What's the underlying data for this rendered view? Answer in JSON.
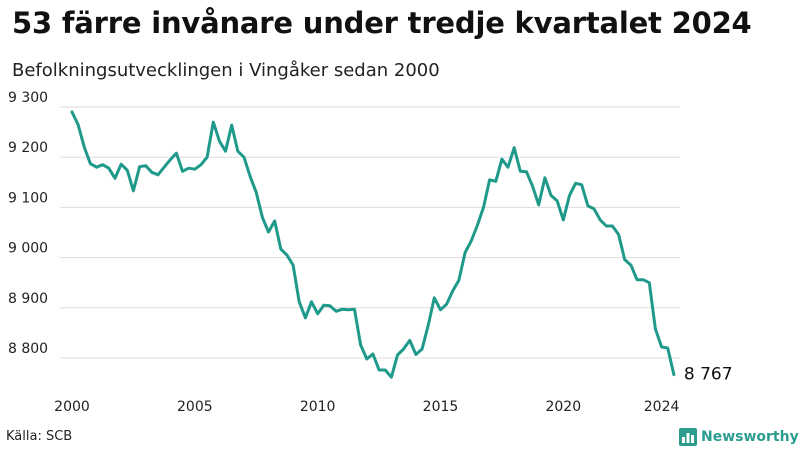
{
  "title": "53 färre invånare under tredje kvartalet 2024",
  "subtitle": "Befolkningsutvecklingen i Vingåker sedan 2000",
  "source": "Källa: SCB",
  "logo_text": "Newsworthy",
  "logo_icon": "bar-chart-icon",
  "colors": {
    "line": "#1f9a8a",
    "grid": "#dddddd",
    "logo": "#2a9d8f"
  },
  "chart_data": {
    "type": "line",
    "title": "53 färre invånare under tredje kvartalet 2024",
    "subtitle": "Befolkningsutvecklingen i Vingåker sedan 2000",
    "xlabel": "",
    "ylabel": "",
    "x_range": [
      2000,
      2024.75
    ],
    "y_range": [
      8760,
      9300
    ],
    "y_ticks": [
      8800,
      8900,
      9000,
      9100,
      9200,
      9300
    ],
    "y_tick_labels": [
      "8 800",
      "8 900",
      "9 000",
      "9 100",
      "9 200",
      "9 300"
    ],
    "x_ticks": [
      2000,
      2005,
      2010,
      2015,
      2020,
      2024
    ],
    "x_tick_labels": [
      "2000",
      "2005",
      "2010",
      "2015",
      "2020",
      "2024"
    ],
    "grid": true,
    "end_label": "8 767",
    "series": [
      {
        "x": [
          2000,
          2000.25,
          2000.5,
          2000.75,
          2001,
          2001.25,
          2001.5,
          2001.75,
          2002,
          2002.25,
          2002.5,
          2002.75,
          2003,
          2003.25,
          2003.5,
          2003.75,
          2004,
          2004.25,
          2004.5,
          2004.75,
          2005,
          2005.25,
          2005.5,
          2005.75,
          2006,
          2006.25,
          2006.5,
          2006.75,
          2007,
          2007.25,
          2007.5,
          2007.75,
          2008,
          2008.25,
          2008.5,
          2008.75,
          2009,
          2009.25,
          2009.5,
          2009.75,
          2010,
          2010.25,
          2010.5,
          2010.75,
          2011,
          2011.25,
          2011.5,
          2011.75,
          2012,
          2012.25,
          2012.5,
          2012.75,
          2013,
          2013.25,
          2013.5,
          2013.75,
          2014,
          2014.25,
          2014.5,
          2014.75,
          2015,
          2015.25,
          2015.5,
          2015.75,
          2016,
          2016.25,
          2016.5,
          2016.75,
          2017,
          2017.25,
          2017.5,
          2017.75,
          2018,
          2018.25,
          2018.5,
          2018.75,
          2019,
          2019.25,
          2019.5,
          2019.75,
          2020,
          2020.25,
          2020.5,
          2020.75,
          2021,
          2021.25,
          2021.5,
          2021.75,
          2022,
          2022.25,
          2022.5,
          2022.75,
          2023,
          2023.25,
          2023.5,
          2023.75,
          2024,
          2024.25,
          2024.5
        ],
        "values": [
          9290,
          9265,
          9220,
          9187,
          9180,
          9185,
          9178,
          9158,
          9186,
          9174,
          9133,
          9181,
          9183,
          9170,
          9165,
          9180,
          9195,
          9208,
          9172,
          9178,
          9176,
          9185,
          9200,
          9270,
          9232,
          9212,
          9264,
          9212,
          9200,
          9162,
          9130,
          9080,
          9051,
          9073,
          9017,
          9005,
          8985,
          8912,
          8880,
          8912,
          8888,
          8905,
          8904,
          8893,
          8897,
          8896,
          8897,
          8826,
          8798,
          8808,
          8776,
          8776,
          8762,
          8806,
          8818,
          8835,
          8807,
          8818,
          8865,
          8920,
          8896,
          8907,
          8934,
          8955,
          9010,
          9033,
          9064,
          9100,
          9155,
          9152,
          9196,
          9180,
          9219,
          9172,
          9171,
          9142,
          9105,
          9159,
          9124,
          9113,
          9075,
          9124,
          9148,
          9145,
          9103,
          9097,
          9075,
          9063,
          9063,
          9046,
          8996,
          8985,
          8956,
          8956,
          8950,
          8858,
          8822,
          8820,
          8767
        ]
      }
    ]
  }
}
